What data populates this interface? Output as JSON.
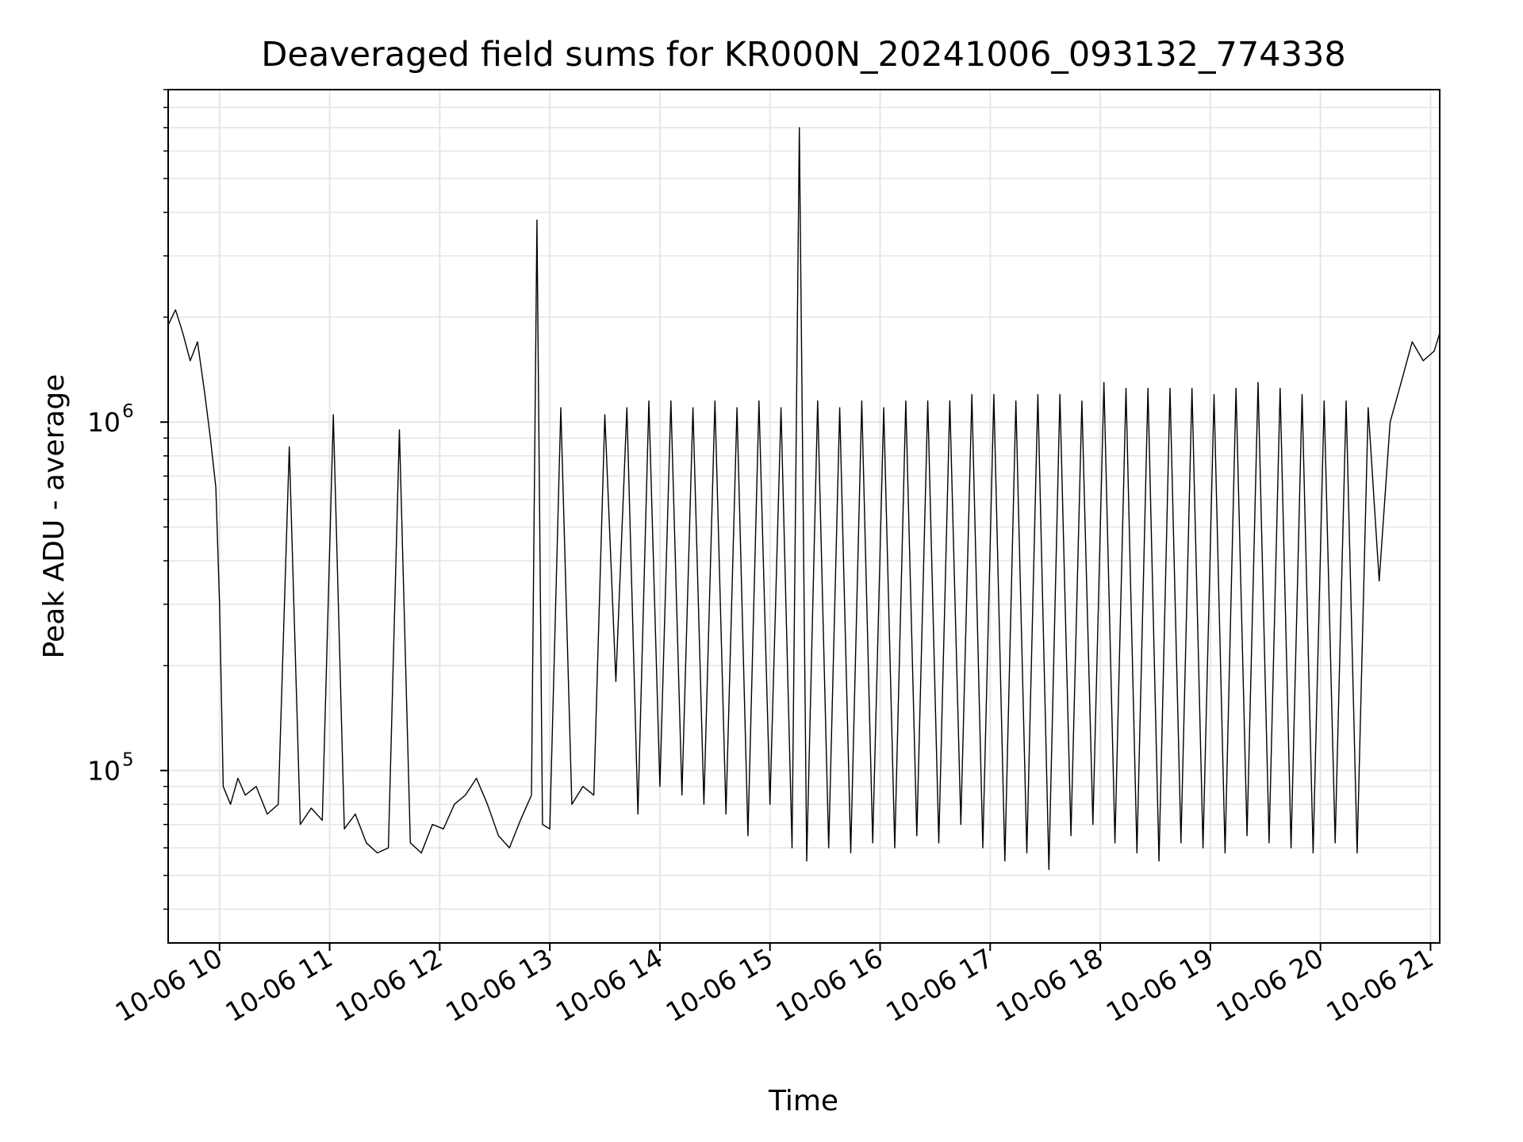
{
  "chart_data": {
    "type": "line",
    "title": "Deaveraged field sums for KR000N_20241006_093132_774338",
    "xlabel": "Time",
    "ylabel": "Peak ADU - average",
    "y_scale": "log",
    "xlim": [
      "2024-10-06 09:32",
      "2024-10-06 21:05"
    ],
    "ylim": [
      32000,
      9000000
    ],
    "grid": true,
    "x_ticks": [
      "10-06 10",
      "10-06 11",
      "10-06 12",
      "10-06 13",
      "10-06 14",
      "10-06 15",
      "10-06 16",
      "10-06 17",
      "10-06 18",
      "10-06 19",
      "10-06 20",
      "10-06 21"
    ],
    "x_tick_times": [
      "2024-10-06 10:00",
      "2024-10-06 11:00",
      "2024-10-06 12:00",
      "2024-10-06 13:00",
      "2024-10-06 14:00",
      "2024-10-06 15:00",
      "2024-10-06 16:00",
      "2024-10-06 17:00",
      "2024-10-06 18:00",
      "2024-10-06 19:00",
      "2024-10-06 20:00",
      "2024-10-06 21:00"
    ],
    "y_major_ticks": [
      100000,
      1000000
    ],
    "y_tick_labels": [
      {
        "base": "10",
        "exp": "5"
      },
      {
        "base": "10",
        "exp": "6"
      }
    ],
    "line_color": "#000000",
    "series": [
      {
        "x": [
          "2024-10-06 09:32",
          "2024-10-06 09:36",
          "2024-10-06 09:40",
          "2024-10-06 09:44",
          "2024-10-06 09:48",
          "2024-10-06 09:52",
          "2024-10-06 09:55",
          "2024-10-06 09:58",
          "2024-10-06 10:00",
          "2024-10-06 10:02",
          "2024-10-06 10:06",
          "2024-10-06 10:10",
          "2024-10-06 10:14",
          "2024-10-06 10:20",
          "2024-10-06 10:26",
          "2024-10-06 10:32",
          "2024-10-06 10:38",
          "2024-10-06 10:44",
          "2024-10-06 10:50",
          "2024-10-06 10:56",
          "2024-10-06 11:02",
          "2024-10-06 11:08",
          "2024-10-06 11:14",
          "2024-10-06 11:20",
          "2024-10-06 11:26",
          "2024-10-06 11:32",
          "2024-10-06 11:38",
          "2024-10-06 11:44",
          "2024-10-06 11:50",
          "2024-10-06 11:56",
          "2024-10-06 12:02",
          "2024-10-06 12:08",
          "2024-10-06 12:14",
          "2024-10-06 12:20",
          "2024-10-06 12:26",
          "2024-10-06 12:32",
          "2024-10-06 12:38",
          "2024-10-06 12:44",
          "2024-10-06 12:50",
          "2024-10-06 12:53",
          "2024-10-06 12:56",
          "2024-10-06 13:00",
          "2024-10-06 13:06",
          "2024-10-06 13:12",
          "2024-10-06 13:18",
          "2024-10-06 13:24",
          "2024-10-06 13:30",
          "2024-10-06 13:36",
          "2024-10-06 13:42",
          "2024-10-06 13:48",
          "2024-10-06 13:54",
          "2024-10-06 14:00",
          "2024-10-06 14:06",
          "2024-10-06 14:12",
          "2024-10-06 14:18",
          "2024-10-06 14:24",
          "2024-10-06 14:30",
          "2024-10-06 14:36",
          "2024-10-06 14:42",
          "2024-10-06 14:48",
          "2024-10-06 14:54",
          "2024-10-06 15:00",
          "2024-10-06 15:06",
          "2024-10-06 15:12",
          "2024-10-06 15:16",
          "2024-10-06 15:20",
          "2024-10-06 15:26",
          "2024-10-06 15:32",
          "2024-10-06 15:38",
          "2024-10-06 15:44",
          "2024-10-06 15:50",
          "2024-10-06 15:56",
          "2024-10-06 16:02",
          "2024-10-06 16:08",
          "2024-10-06 16:14",
          "2024-10-06 16:20",
          "2024-10-06 16:26",
          "2024-10-06 16:32",
          "2024-10-06 16:38",
          "2024-10-06 16:44",
          "2024-10-06 16:50",
          "2024-10-06 16:56",
          "2024-10-06 17:02",
          "2024-10-06 17:08",
          "2024-10-06 17:14",
          "2024-10-06 17:20",
          "2024-10-06 17:26",
          "2024-10-06 17:32",
          "2024-10-06 17:38",
          "2024-10-06 17:44",
          "2024-10-06 17:50",
          "2024-10-06 17:56",
          "2024-10-06 18:02",
          "2024-10-06 18:08",
          "2024-10-06 18:14",
          "2024-10-06 18:20",
          "2024-10-06 18:26",
          "2024-10-06 18:32",
          "2024-10-06 18:38",
          "2024-10-06 18:44",
          "2024-10-06 18:50",
          "2024-10-06 18:56",
          "2024-10-06 19:02",
          "2024-10-06 19:08",
          "2024-10-06 19:14",
          "2024-10-06 19:20",
          "2024-10-06 19:26",
          "2024-10-06 19:32",
          "2024-10-06 19:38",
          "2024-10-06 19:44",
          "2024-10-06 19:50",
          "2024-10-06 19:56",
          "2024-10-06 20:02",
          "2024-10-06 20:08",
          "2024-10-06 20:14",
          "2024-10-06 20:20",
          "2024-10-06 20:26",
          "2024-10-06 20:32",
          "2024-10-06 20:38",
          "2024-10-06 20:44",
          "2024-10-06 20:50",
          "2024-10-06 20:56",
          "2024-10-06 21:02",
          "2024-10-06 21:05"
        ],
        "y": [
          1900000,
          2100000,
          1800000,
          1500000,
          1700000,
          1200000,
          900000,
          650000,
          300000,
          90000,
          80000,
          95000,
          85000,
          90000,
          75000,
          80000,
          850000,
          70000,
          78000,
          72000,
          1050000,
          68000,
          75000,
          62000,
          58000,
          60000,
          950000,
          62000,
          58000,
          70000,
          68000,
          80000,
          85000,
          95000,
          80000,
          65000,
          60000,
          72000,
          85000,
          3800000,
          70000,
          68000,
          1100000,
          80000,
          90000,
          85000,
          1050000,
          180000,
          1100000,
          75000,
          1150000,
          90000,
          1150000,
          85000,
          1100000,
          80000,
          1150000,
          75000,
          1100000,
          65000,
          1150000,
          80000,
          1100000,
          60000,
          7000000,
          55000,
          1150000,
          60000,
          1100000,
          58000,
          1150000,
          62000,
          1100000,
          60000,
          1150000,
          65000,
          1150000,
          62000,
          1150000,
          70000,
          1200000,
          60000,
          1200000,
          55000,
          1150000,
          58000,
          1200000,
          52000,
          1200000,
          65000,
          1150000,
          70000,
          1300000,
          62000,
          1250000,
          58000,
          1250000,
          55000,
          1250000,
          62000,
          1250000,
          60000,
          1200000,
          58000,
          1250000,
          65000,
          1300000,
          62000,
          1250000,
          60000,
          1200000,
          58000,
          1150000,
          62000,
          1150000,
          58000,
          1100000,
          350000,
          1000000,
          1300000,
          1700000,
          1500000,
          1600000,
          1800000
        ]
      }
    ]
  }
}
